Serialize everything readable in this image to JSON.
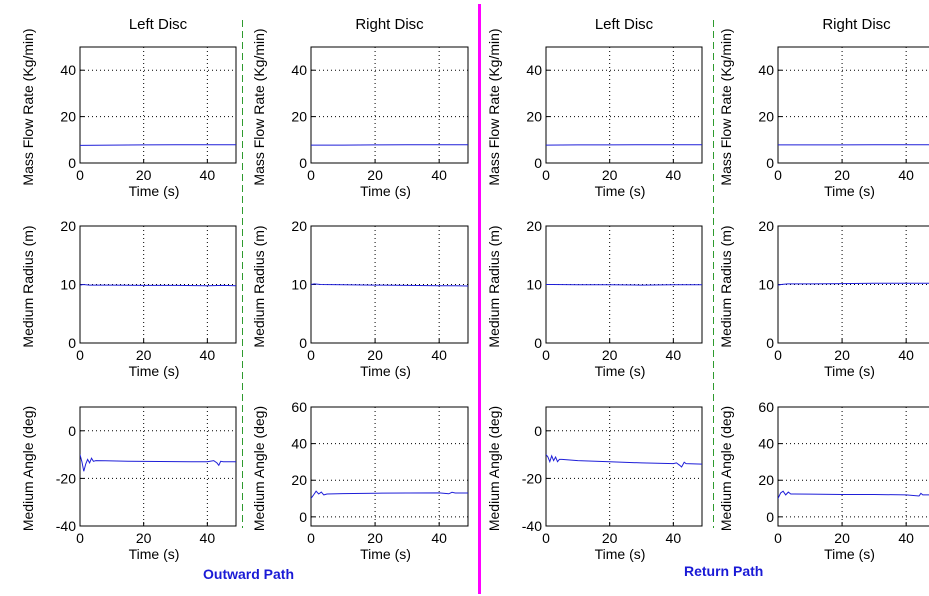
{
  "labels": {
    "outward_path": "Outward Path",
    "return_path": "Return Path",
    "left_disc": "Left Disc",
    "right_disc": "Right Disc"
  },
  "colors": {
    "series": "#1f1fd8",
    "grid": "#000000",
    "magenta_divider": "#ff00ff",
    "green_divider": "#2e9a2e",
    "path_label": "#1a1ad6"
  },
  "chart_data": [
    {
      "group": "Outward Path",
      "title": "Left Disc",
      "type": "line",
      "xlabel": "Time (s)",
      "ylabel": "Mass Flow Rate (Kg/min)",
      "xlim": [
        0,
        49
      ],
      "ylim": [
        0,
        50
      ],
      "xticks": [
        0,
        20,
        40
      ],
      "yticks": [
        0,
        20,
        40
      ],
      "grid": true,
      "series": [
        {
          "x": [
            0,
            10,
            20,
            30,
            40,
            49
          ],
          "y": [
            7.6,
            7.7,
            7.8,
            7.9,
            7.9,
            7.9
          ]
        }
      ]
    },
    {
      "group": "Outward Path",
      "title": "Right Disc",
      "type": "line",
      "xlabel": "Time (s)",
      "ylabel": "Mass Flow Rate (Kg/min)",
      "xlim": [
        0,
        49
      ],
      "ylim": [
        0,
        50
      ],
      "xticks": [
        0,
        20,
        40
      ],
      "yticks": [
        0,
        20,
        40
      ],
      "grid": true,
      "series": [
        {
          "x": [
            0,
            10,
            20,
            30,
            40,
            49
          ],
          "y": [
            7.7,
            7.7,
            7.8,
            7.9,
            7.9,
            7.9
          ]
        }
      ]
    },
    {
      "group": "Outward Path",
      "title": "",
      "type": "line",
      "xlabel": "Time (s)",
      "ylabel": "Medium Radius (m)",
      "xlim": [
        0,
        49
      ],
      "ylim": [
        0,
        20
      ],
      "xticks": [
        0,
        20,
        40
      ],
      "yticks": [
        0,
        10,
        20
      ],
      "grid": true,
      "series": [
        {
          "x": [
            0,
            1,
            3,
            10,
            20,
            30,
            40,
            45,
            49
          ],
          "y": [
            9.9,
            10.0,
            9.9,
            9.9,
            9.85,
            9.85,
            9.8,
            9.85,
            9.8
          ]
        }
      ]
    },
    {
      "group": "Outward Path",
      "title": "",
      "type": "line",
      "xlabel": "Time (s)",
      "ylabel": "Medium Radius (m)",
      "xlim": [
        0,
        49
      ],
      "ylim": [
        0,
        20
      ],
      "xticks": [
        0,
        20,
        40
      ],
      "yticks": [
        0,
        10,
        20
      ],
      "grid": true,
      "series": [
        {
          "x": [
            0,
            1,
            3,
            10,
            20,
            30,
            40,
            45,
            49
          ],
          "y": [
            10.0,
            10.1,
            10.0,
            9.95,
            9.9,
            9.85,
            9.8,
            9.8,
            9.75
          ]
        }
      ]
    },
    {
      "group": "Outward Path",
      "title": "",
      "type": "line",
      "xlabel": "Time (s)",
      "ylabel": "Medium Angle (deg)",
      "xlim": [
        0,
        49
      ],
      "ylim": [
        -40,
        10
      ],
      "xticks": [
        0,
        20,
        40
      ],
      "yticks": [
        -40,
        -20,
        0
      ],
      "grid": true,
      "series": [
        {
          "x": [
            0,
            0.6,
            1.2,
            1.8,
            2.4,
            3.0,
            3.6,
            4.2,
            5,
            8,
            15,
            25,
            35,
            40,
            42,
            43,
            43.6,
            44.2,
            45,
            49
          ],
          "y": [
            -10,
            -13,
            -17,
            -14,
            -12,
            -13.5,
            -11.5,
            -12.8,
            -12.5,
            -12.6,
            -12.8,
            -12.9,
            -13.0,
            -13.0,
            -12.5,
            -13.5,
            -14.5,
            -12.8,
            -13.0,
            -13.0
          ]
        }
      ]
    },
    {
      "group": "Outward Path",
      "title": "",
      "type": "line",
      "xlabel": "Time (s)",
      "ylabel": "Medium Angle (deg)",
      "xlim": [
        0,
        49
      ],
      "ylim": [
        -5,
        60
      ],
      "xticks": [
        0,
        20,
        40
      ],
      "yticks": [
        0,
        20,
        40,
        60
      ],
      "grid": true,
      "series": [
        {
          "x": [
            0,
            0.8,
            1.6,
            2.4,
            3.2,
            4.0,
            5,
            10,
            20,
            30,
            40,
            43,
            44,
            45,
            49
          ],
          "y": [
            10,
            12,
            14,
            12.5,
            13.5,
            12,
            12.5,
            12.7,
            12.9,
            13.0,
            13.1,
            12.6,
            13.4,
            13.0,
            13.0
          ]
        }
      ]
    },
    {
      "group": "Return Path",
      "title": "Left Disc",
      "type": "line",
      "xlabel": "Time (s)",
      "ylabel": "Mass Flow Rate (Kg/min)",
      "xlim": [
        0,
        49
      ],
      "ylim": [
        0,
        50
      ],
      "xticks": [
        0,
        20,
        40
      ],
      "yticks": [
        0,
        20,
        40
      ],
      "grid": true,
      "series": [
        {
          "x": [
            0,
            10,
            20,
            30,
            40,
            49
          ],
          "y": [
            7.7,
            7.8,
            7.8,
            7.9,
            7.9,
            7.9
          ]
        }
      ]
    },
    {
      "group": "Return Path",
      "title": "Right Disc",
      "type": "line",
      "xlabel": "Time (s)",
      "ylabel": "Mass Flow Rate (Kg/min)",
      "xlim": [
        0,
        49
      ],
      "ylim": [
        0,
        50
      ],
      "xticks": [
        0,
        20,
        40
      ],
      "yticks": [
        0,
        20,
        40
      ],
      "grid": true,
      "series": [
        {
          "x": [
            0,
            10,
            20,
            30,
            40,
            49
          ],
          "y": [
            7.8,
            7.8,
            7.8,
            7.9,
            7.9,
            7.9
          ]
        }
      ]
    },
    {
      "group": "Return Path",
      "title": "",
      "type": "line",
      "xlabel": "Time (s)",
      "ylabel": "Medium Radius (m)",
      "xlim": [
        0,
        49
      ],
      "ylim": [
        0,
        20
      ],
      "xticks": [
        0,
        20,
        40
      ],
      "yticks": [
        0,
        10,
        20
      ],
      "grid": true,
      "series": [
        {
          "x": [
            0,
            2,
            10,
            20,
            30,
            40,
            49
          ],
          "y": [
            10.0,
            10.0,
            9.95,
            9.95,
            9.9,
            9.95,
            9.95
          ]
        }
      ]
    },
    {
      "group": "Return Path",
      "title": "",
      "type": "line",
      "xlabel": "Time (s)",
      "ylabel": "Medium Radius (m)",
      "xlim": [
        0,
        49
      ],
      "ylim": [
        0,
        20
      ],
      "xticks": [
        0,
        20,
        40
      ],
      "yticks": [
        0,
        10,
        20
      ],
      "grid": true,
      "series": [
        {
          "x": [
            0,
            1,
            3,
            10,
            20,
            30,
            40,
            49
          ],
          "y": [
            9.9,
            10.0,
            10.1,
            10.1,
            10.15,
            10.2,
            10.2,
            10.2
          ]
        }
      ]
    },
    {
      "group": "Return Path",
      "title": "",
      "type": "line",
      "xlabel": "Time (s)",
      "ylabel": "Medium Angle (deg)",
      "xlim": [
        0,
        49
      ],
      "ylim": [
        -40,
        10
      ],
      "xticks": [
        0,
        20,
        40
      ],
      "yticks": [
        -40,
        -20,
        0
      ],
      "grid": true,
      "series": [
        {
          "x": [
            0,
            0.6,
            1.2,
            1.8,
            2.4,
            3.0,
            3.6,
            4.2,
            5,
            10,
            20,
            30,
            40,
            41,
            42,
            42.6,
            43.4,
            44,
            49
          ],
          "y": [
            -10,
            -11,
            -13,
            -10.5,
            -12.5,
            -11,
            -13,
            -12,
            -12,
            -12.5,
            -13.0,
            -13.5,
            -13.8,
            -13.5,
            -14.5,
            -15.2,
            -13.2,
            -13.8,
            -14.0
          ]
        }
      ]
    },
    {
      "group": "Return Path",
      "title": "",
      "type": "line",
      "xlabel": "Time (s)",
      "ylabel": "Medium Angle (deg)",
      "xlim": [
        0,
        49
      ],
      "ylim": [
        -5,
        60
      ],
      "xticks": [
        0,
        20,
        40
      ],
      "yticks": [
        0,
        20,
        40,
        60
      ],
      "grid": true,
      "series": [
        {
          "x": [
            0,
            0.8,
            1.6,
            2.4,
            3.2,
            4.0,
            5,
            10,
            20,
            30,
            40,
            44,
            44.6,
            45.2,
            49
          ],
          "y": [
            10,
            13,
            14,
            12,
            13.5,
            12.5,
            12.5,
            12.4,
            12.2,
            12.2,
            12.0,
            11.4,
            12.8,
            12.0,
            12.0
          ]
        }
      ]
    }
  ]
}
